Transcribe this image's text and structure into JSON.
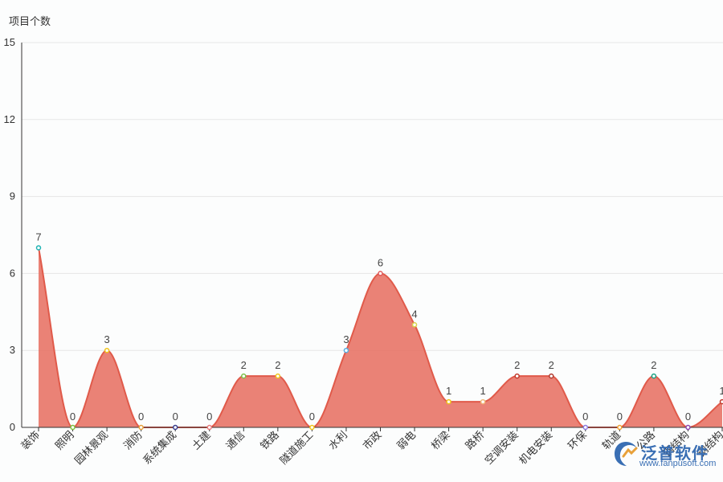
{
  "chart_data": {
    "type": "area",
    "ylabel": "项目个数",
    "ylim": [
      0,
      15
    ],
    "yticks": [
      0,
      3,
      6,
      9,
      12,
      15
    ],
    "categories": [
      "装饰",
      "照明",
      "园林景观",
      "消防",
      "系统集成",
      "土建",
      "通信",
      "铁路",
      "隧道施工",
      "水利",
      "市政",
      "弱电",
      "桥梁",
      "路桥",
      "空调安装",
      "机电安装",
      "环保",
      "轨道",
      "公路",
      "钢结构",
      "钢结构"
    ],
    "values": [
      7,
      0,
      3,
      0,
      0,
      0,
      2,
      2,
      0,
      3,
      6,
      4,
      1,
      1,
      2,
      2,
      0,
      0,
      2,
      0,
      1
    ],
    "point_colors": [
      "#1fb3b3",
      "#7cbf3f",
      "#f0c419",
      "#e8a13a",
      "#3a3f8f",
      "#e87a7a",
      "#7cc14a",
      "#f0c419",
      "#f0c419",
      "#5aaee0",
      "#e05a5a",
      "#d9d34a",
      "#f0c419",
      "#f0b87a",
      "#c0392b",
      "#b03a2e",
      "#8c7ae0",
      "#f0a030",
      "#1aa385",
      "#8e44ad",
      "#c0392b"
    ],
    "series_color": "#e05a4a",
    "fill_color": "#e8776a",
    "grid": true
  },
  "watermark": {
    "name": "泛普软件",
    "url": "www.fanpusoft.com"
  }
}
